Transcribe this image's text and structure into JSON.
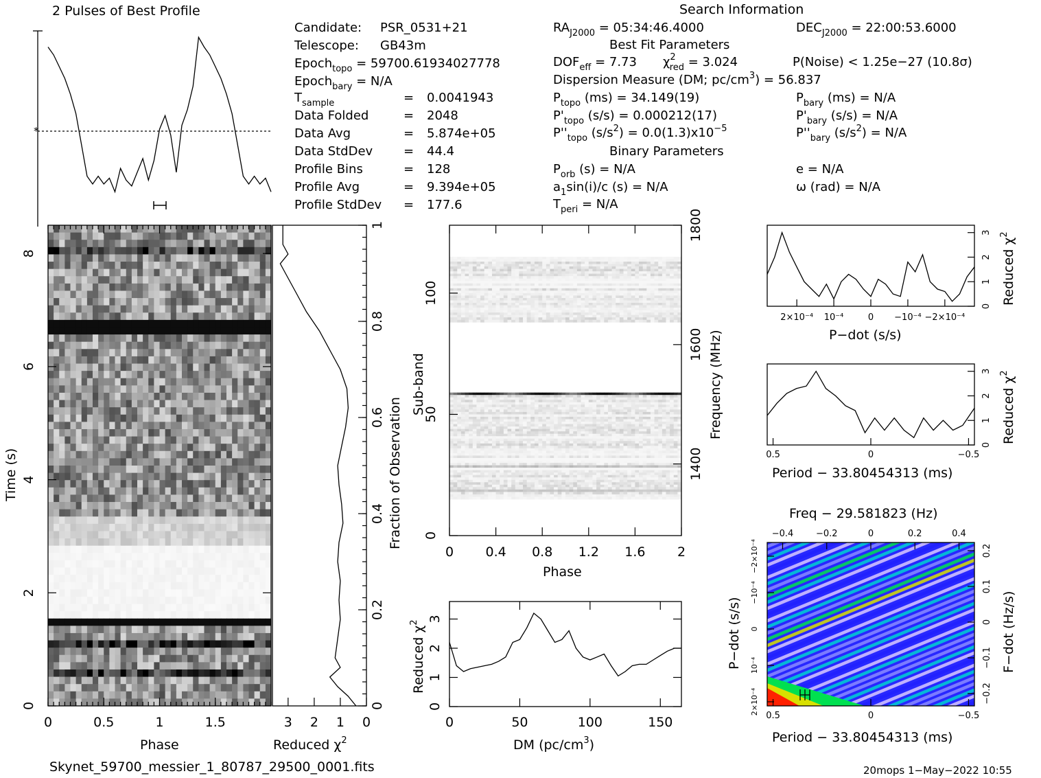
{
  "profile": {
    "title": "2 Pulses of Best Profile"
  },
  "info": {
    "search_title": "Search Information",
    "candidate_label": "Candidate:",
    "candidate": "PSR_0531+21",
    "telescope_label": "Telescope:",
    "telescope": "GB43m",
    "epoch_topo_label": "Epoch",
    "epoch_topo_sub": "topo",
    "epoch_topo": " = 59700.61934027778",
    "epoch_bary_label": "Epoch",
    "epoch_bary_sub": "bary",
    "epoch_bary": " = N/A",
    "tsample_label": "T",
    "tsample_sub": "sample",
    "tsample": "0.0041943",
    "data_folded_label": "Data Folded",
    "data_folded": "2048",
    "data_avg_label": "Data Avg",
    "data_avg": "5.874e+05",
    "data_stddev_label": "Data StdDev",
    "data_stddev": "44.4",
    "profile_bins_label": "Profile Bins",
    "profile_bins": "128",
    "profile_avg_label": "Profile Avg",
    "profile_avg": "9.394e+05",
    "profile_stddev_label": "Profile StdDev",
    "profile_stddev": "177.6",
    "eq": "=",
    "ra_label": "RA",
    "ra_sub": "J2000",
    "ra": " = 05:34:46.4000",
    "dec_label": "DEC",
    "dec_sub": "J2000",
    "dec": " = 22:00:53.6000",
    "best_fit_title": "Best Fit Parameters",
    "dof_label": "DOF",
    "dof_sub": "eff",
    "dof": " = 7.73",
    "chi_label": "χ",
    "chi_sup": "2",
    "chi_sub": "red",
    "chi": " = 3.024",
    "pnoise": "P(Noise) < 1.25e−27   (10.8σ)",
    "dm_text": "Dispersion Measure (DM; pc/cm",
    "dm_sup": "3",
    "dm_val": ") = 56.837",
    "ptopo_label": "P",
    "ptopo_sub": "topo",
    "ptopo": " (ms) =  34.149(19)",
    "pdtopo_label": "P'",
    "pdtopo_sub": "topo",
    "pdtopo": " (s/s) =  0.000212(17)",
    "pddtopo_label": "P''",
    "pddtopo_sub": "topo",
    "pddtopo_a": " (s/s",
    "pddtopo_sup": "2",
    "pddtopo_b": ") = 0.0(1.3)x10",
    "pddtopo_exp": "−5",
    "pbary_label": "P",
    "pbary_sub": "bary",
    "pbary": " (ms) = N/A",
    "pdbary_label": "P'",
    "pdbary_sub": "bary",
    "pdbary": " (s/s) = N/A",
    "pddbary_label": "P''",
    "pddbary_sub": "bary",
    "pddbary_a": " (s/s",
    "pddbary_sup": "2",
    "pddbary_b": ") = N/A",
    "binary_title": "Binary Parameters",
    "porb_label": "P",
    "porb_sub": "orb",
    "porb": " (s) = N/A",
    "a1_a": "a",
    "a1_sub": "1",
    "a1_b": "sin(i)/c (s) = N/A",
    "tperi_label": "T",
    "tperi_sub": "peri",
    "tperi": " = N/A",
    "ecc": "e = N/A",
    "omega": "ω (rad) = N/A"
  },
  "footer": {
    "filename": "Skynet_59700_messier_1_80787_29500_0001.fits",
    "stamp": "20mops   1−May−2022 10:55"
  },
  "chart_data": [
    {
      "id": "profile",
      "type": "line",
      "title": "2 Pulses of Best Profile",
      "x_range": [
        0,
        2
      ],
      "x": [
        0,
        0.05,
        0.1,
        0.15,
        0.2,
        0.25,
        0.3,
        0.35,
        0.4,
        0.45,
        0.5,
        0.55,
        0.6,
        0.65,
        0.7,
        0.75,
        0.8,
        0.85,
        0.9,
        0.95,
        1.0,
        1.05,
        1.1,
        1.15,
        1.2,
        1.25,
        1.3,
        1.35,
        1.4,
        1.45,
        1.5,
        1.55,
        1.6,
        1.65,
        1.7,
        1.75,
        1.8,
        1.85,
        1.9,
        1.95,
        2.0
      ],
      "y": [
        0.9,
        0.86,
        0.8,
        0.74,
        0.66,
        0.56,
        0.4,
        0.24,
        0.2,
        0.24,
        0.2,
        0.23,
        0.16,
        0.28,
        0.22,
        0.19,
        0.26,
        0.33,
        0.22,
        0.32,
        0.48,
        0.55,
        0.45,
        0.26,
        0.5,
        0.58,
        0.7,
        0.95,
        0.9,
        0.86,
        0.8,
        0.74,
        0.66,
        0.56,
        0.4,
        0.24,
        0.2,
        0.24,
        0.2,
        0.23,
        0.16
      ]
    },
    {
      "id": "time-phase",
      "type": "heatmap",
      "xlabel": "Phase",
      "ylabel": "Time (s)",
      "x_ticks": [
        "0",
        "0.5",
        "1",
        "1.5"
      ],
      "y_ticks": [
        "0",
        "2",
        "4",
        "6",
        "8"
      ],
      "x_range": [
        0,
        2
      ],
      "y_range": [
        0,
        8.5
      ]
    },
    {
      "id": "chi-vs-time",
      "type": "line",
      "xlabel": "Reduced χ²",
      "ylabel": "Fraction of Observation",
      "x_ticks": [
        "3",
        "2",
        "1",
        "0"
      ],
      "y_ticks": [
        "0",
        "0.2",
        "0.4",
        "0.6",
        "0.8",
        "1"
      ],
      "x_range": [
        3.6,
        0
      ],
      "y_range": [
        0,
        1
      ],
      "fraction": [
        0,
        0.02,
        0.04,
        0.06,
        0.08,
        0.1,
        0.14,
        0.18,
        0.22,
        0.26,
        0.3,
        0.34,
        0.38,
        0.42,
        0.46,
        0.5,
        0.54,
        0.58,
        0.62,
        0.66,
        0.7,
        0.74,
        0.78,
        0.82,
        0.86,
        0.9,
        0.92,
        0.94,
        0.96,
        1.0
      ],
      "chi": [
        0.4,
        0.7,
        1.1,
        1.4,
        1.0,
        1.2,
        1.1,
        1.0,
        1.05,
        1.0,
        1.1,
        1.05,
        0.9,
        0.95,
        1.05,
        1.1,
        0.95,
        0.8,
        0.7,
        0.75,
        1.0,
        1.4,
        1.8,
        2.3,
        2.7,
        3.1,
        3.3,
        3.0,
        3.2,
        3.2
      ]
    },
    {
      "id": "subband-phase",
      "type": "heatmap",
      "xlabel": "Phase",
      "ylabel": "Sub-band",
      "ylabel_right": "Frequency (MHz)",
      "x_ticks": [
        "0",
        "0.4",
        "0.8",
        "1.2",
        "1.6",
        "2"
      ],
      "y_ticks": [
        "0",
        "50",
        "100"
      ],
      "y_ticks_right": [
        "1400",
        "1600",
        "1800"
      ],
      "x_range": [
        0,
        2
      ],
      "y_range": [
        0,
        128
      ]
    },
    {
      "id": "chi-vs-dm",
      "type": "line",
      "xlabel": "DM (pc/cm³)",
      "ylabel": "Reduced χ²",
      "x_ticks": [
        "0",
        "50",
        "100",
        "150"
      ],
      "y_ticks": [
        "0",
        "1",
        "2",
        "3"
      ],
      "x_range": [
        0,
        165
      ],
      "y_range": [
        0,
        3.6
      ],
      "x": [
        0,
        5,
        10,
        15,
        20,
        25,
        30,
        35,
        40,
        45,
        50,
        55,
        60,
        65,
        70,
        75,
        80,
        85,
        90,
        95,
        100,
        105,
        110,
        115,
        120,
        125,
        130,
        135,
        140,
        145,
        150,
        155,
        160,
        165
      ],
      "y": [
        2.2,
        1.4,
        1.2,
        1.3,
        1.35,
        1.4,
        1.45,
        1.55,
        1.7,
        2.2,
        2.3,
        2.7,
        3.2,
        3.0,
        2.6,
        2.2,
        2.3,
        2.6,
        2.0,
        1.7,
        1.6,
        1.7,
        1.8,
        1.4,
        1.05,
        1.2,
        1.4,
        1.45,
        1.45,
        1.6,
        1.75,
        1.9,
        2.0,
        2.0
      ]
    },
    {
      "id": "chi-vs-pdot",
      "type": "line",
      "xlabel": "P−dot (s/s)",
      "ylabel": "Reduced χ²",
      "x_ticks": [
        "2×10⁻⁴",
        "10⁻⁴",
        "0",
        "−10⁻⁴",
        "−2×10⁻⁴"
      ],
      "y_ticks": [
        "0",
        "1",
        "2",
        "3"
      ],
      "x_range": [
        0.00028,
        -0.00028
      ],
      "y_range": [
        0,
        3.3
      ],
      "x": [
        0.00028,
        0.00026,
        0.00024,
        0.00022,
        0.0002,
        0.00018,
        0.00016,
        0.00014,
        0.00012,
        0.0001,
        8e-05,
        6e-05,
        4e-05,
        2e-05,
        0,
        -2e-05,
        -4e-05,
        -6e-05,
        -8e-05,
        -0.0001,
        -0.00012,
        -0.00014,
        -0.00016,
        -0.00018,
        -0.0002,
        -0.00022,
        -0.00024,
        -0.00026,
        -0.00028
      ],
      "y": [
        1.3,
        2.0,
        3.0,
        2.2,
        1.6,
        1.0,
        0.7,
        0.4,
        0.9,
        0.3,
        1.0,
        1.3,
        1.1,
        0.7,
        0.4,
        1.1,
        0.9,
        0.5,
        0.4,
        1.8,
        1.4,
        2.1,
        1.0,
        0.7,
        0.6,
        0.2,
        0.5,
        1.2,
        1.6
      ]
    },
    {
      "id": "chi-vs-period",
      "type": "line",
      "xlabel": "Period − 33.80454313 (ms)",
      "ylabel": "Reduced χ²",
      "x_ticks": [
        "0.5",
        "0",
        "−0.5"
      ],
      "y_ticks": [
        "0",
        "1",
        "2",
        "3"
      ],
      "x_range": [
        0.53,
        -0.53
      ],
      "y_range": [
        0,
        3.3
      ],
      "x": [
        0.53,
        0.48,
        0.43,
        0.38,
        0.33,
        0.28,
        0.23,
        0.18,
        0.13,
        0.08,
        0.03,
        -0.02,
        -0.07,
        -0.12,
        -0.17,
        -0.22,
        -0.27,
        -0.32,
        -0.37,
        -0.42,
        -0.47,
        -0.53
      ],
      "y": [
        1.2,
        1.7,
        2.1,
        2.3,
        2.4,
        3.0,
        2.3,
        2.0,
        1.6,
        1.4,
        0.5,
        1.1,
        0.6,
        1.1,
        0.6,
        0.3,
        1.1,
        0.6,
        1.0,
        0.6,
        0.8,
        1.5
      ]
    },
    {
      "id": "period-pdot",
      "type": "heatmap",
      "title": "Freq − 29.581823 (Hz)",
      "xlabel": "Period − 33.80454313 (ms)",
      "ylabel": "P−dot (s/s)",
      "ylabel_right": "F−dot (Hz/s)",
      "x_ticks": [
        "0.5",
        "0",
        "−0.5"
      ],
      "x_ticks_top": [
        "−0.4",
        "−0.2",
        "0",
        "0.2",
        "0.4"
      ],
      "y_ticks": [
        "2×10⁻⁴",
        "10⁻⁴",
        "0",
        "−10⁻⁴",
        "−2×10⁻⁴"
      ],
      "y_ticks_right": [
        "−0.2",
        "−0.1",
        "0",
        "0.1",
        "0.2"
      ],
      "colors": [
        "#2020ff",
        "#8a8aff",
        "#d8c8ff",
        "#00d0d0",
        "#00e050",
        "#d8e000",
        "#ff2000"
      ]
    }
  ]
}
